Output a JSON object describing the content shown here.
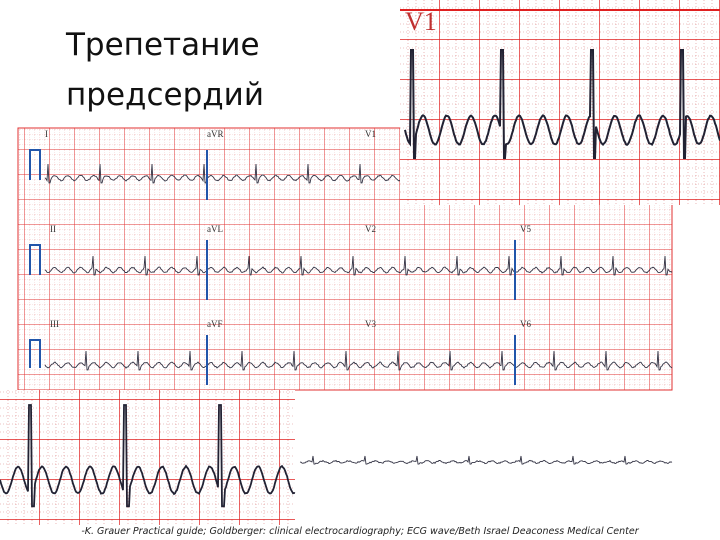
{
  "title": {
    "line1": "Трепетание",
    "line2": "предсердий"
  },
  "inset_top": {
    "label": "V1"
  },
  "leads": [
    "I",
    "aVR",
    "V1",
    "II",
    "aVL",
    "V2",
    "V5",
    "III",
    "aVF",
    "V3",
    "V6"
  ],
  "caption": "-K. Grauer Practical guide; Goldberger: clinical electrocardiography; ECG wave/Beth Israel Deaconess Medical Center"
}
